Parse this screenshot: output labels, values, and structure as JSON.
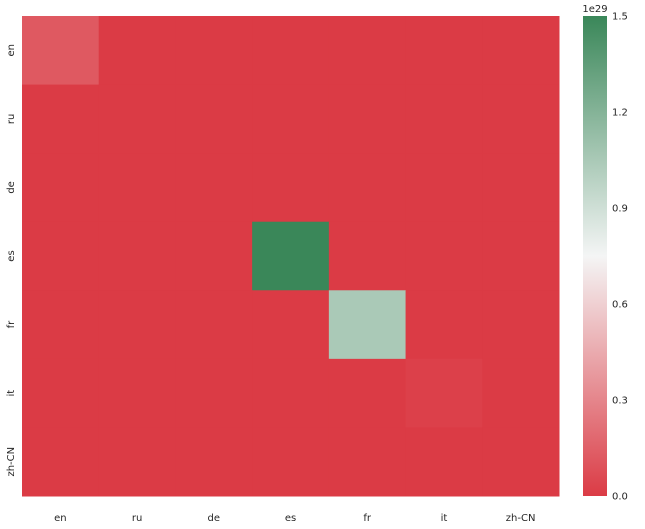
{
  "chart_data": {
    "type": "heatmap",
    "x_categories": [
      "en",
      "ru",
      "de",
      "es",
      "fr",
      "it",
      "zh-CN"
    ],
    "y_categories": [
      "en",
      "ru",
      "de",
      "es",
      "fr",
      "it",
      "zh-CN"
    ],
    "values": [
      [
        0.12,
        0,
        0,
        0,
        0,
        0,
        0
      ],
      [
        0,
        0,
        0,
        0,
        0,
        0,
        0
      ],
      [
        0,
        0,
        0,
        0,
        0,
        0,
        0
      ],
      [
        0,
        0,
        0,
        1.5,
        0,
        0,
        0
      ],
      [
        0,
        0,
        0,
        0,
        1.05,
        0,
        0
      ],
      [
        0,
        0,
        0,
        0,
        0,
        0.02,
        0
      ],
      [
        0,
        0,
        0,
        0,
        0,
        0,
        0
      ]
    ],
    "value_scale_label": "1e29",
    "colorbar": {
      "range": [
        0,
        1.5
      ],
      "ticks": [
        "0.0",
        "0.3",
        "0.6",
        "0.9",
        "1.2",
        "1.5"
      ],
      "colors": {
        "low": "#db3b45",
        "mid": "#f4f5f5",
        "high": "#3a8759"
      }
    },
    "title": "",
    "xlabel": "",
    "ylabel": "",
    "grid": false,
    "legend": "colorbar-right"
  }
}
